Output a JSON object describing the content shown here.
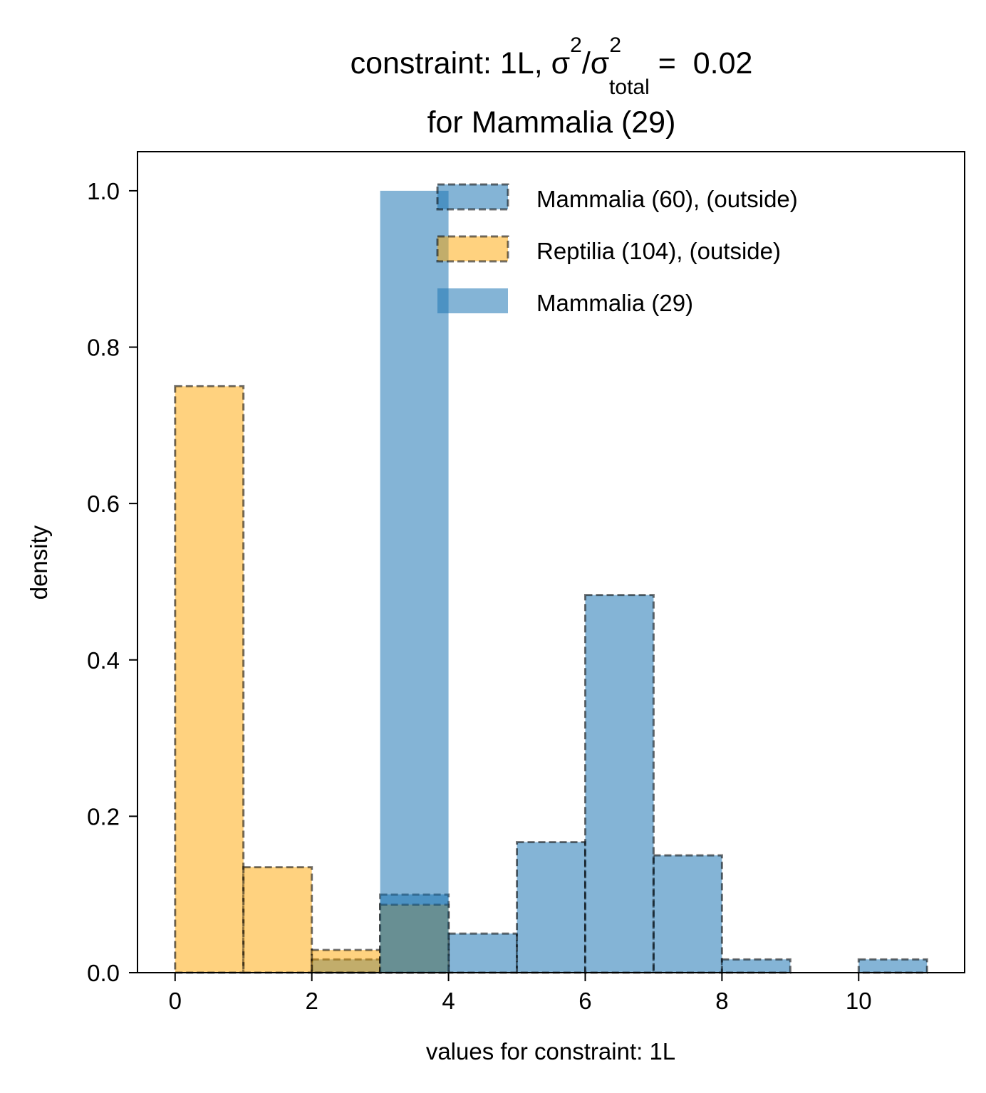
{
  "chart_data": {
    "type": "bar",
    "title": {
      "line1_prefix": "constraint: 1L, σ",
      "sup1": "2",
      "mid": "/σ",
      "sup2": "2",
      "sub": "total",
      "line1_suffix": " =  0.02",
      "line2": "for Mammalia (29)"
    },
    "xlabel": "values for constraint: 1L",
    "ylabel": "density",
    "xlim": [
      -0.55,
      11.55
    ],
    "ylim": [
      0,
      1.05
    ],
    "xticks": [
      0,
      2,
      4,
      6,
      8,
      10
    ],
    "xtick_labels": [
      "0",
      "2",
      "4",
      "6",
      "8",
      "10"
    ],
    "yticks": [
      0.0,
      0.2,
      0.4,
      0.6,
      0.8,
      1.0
    ],
    "ytick_labels": [
      "0.0",
      "0.2",
      "0.4",
      "0.6",
      "0.8",
      "1.0"
    ],
    "legend_position": "top-right",
    "grid": false,
    "bin_edges": [
      0,
      1,
      2,
      3,
      4,
      5,
      6,
      7,
      8,
      9,
      10,
      11
    ],
    "series": [
      {
        "name": "Mammalia (60), (outside)",
        "color": "#1f77b4",
        "style": "dashed-edge",
        "values": [
          0,
          0,
          0.017,
          0.1,
          0.05,
          0.167,
          0.483,
          0.15,
          0.017,
          0,
          0.017
        ]
      },
      {
        "name": "Reptilia (104), (outside)",
        "color": "#ffa500",
        "style": "dashed-edge",
        "values": [
          0.75,
          0.135,
          0.029,
          0.087,
          0,
          0,
          0,
          0,
          0,
          0,
          0
        ]
      },
      {
        "name": "Mammalia (29)",
        "color": "#1f77b4",
        "style": "filled",
        "values": [
          0,
          0,
          0,
          1.0,
          0,
          0,
          0,
          0,
          0,
          0,
          0
        ]
      }
    ]
  }
}
